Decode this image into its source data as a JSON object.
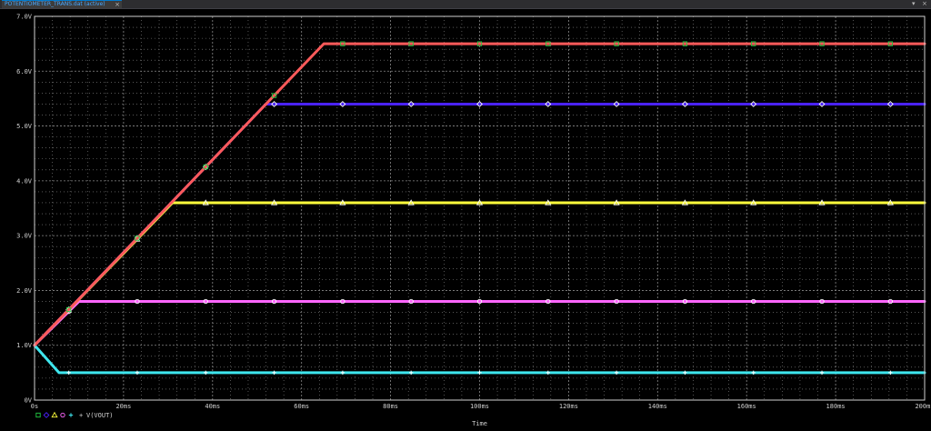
{
  "window": {
    "tab_label": "POTENTIOMETER_TRANS.dat (active)",
    "close_glyph": "×",
    "scroll_glyph": "▾",
    "window_close_glyph": "×"
  },
  "legend": {
    "label": "V(VOUT)",
    "prefix": "+"
  },
  "colors": {
    "background": "#000000",
    "grid": "#8a8a8a",
    "axis": "#cfcfcf",
    "series": [
      "#ff5a5a",
      "#4a22ff",
      "#ffff3c",
      "#ff66ff",
      "#3ee6ee"
    ],
    "marker_first": "#22cc44"
  },
  "chart_data": {
    "type": "line",
    "title": "",
    "xlabel": "Time",
    "ylabel": "",
    "xlim": [
      0,
      200
    ],
    "ylim": [
      0,
      7
    ],
    "x_ticks": [
      0,
      20,
      40,
      60,
      80,
      100,
      120,
      140,
      160,
      180,
      200
    ],
    "x_tick_labels": [
      "0s",
      "20ms",
      "40ms",
      "60ms",
      "80ms",
      "100ms",
      "120ms",
      "140ms",
      "160ms",
      "180ms",
      "200ms"
    ],
    "y_ticks": [
      0,
      1,
      2,
      3,
      4,
      5,
      6,
      7
    ],
    "y_tick_labels": [
      "0V",
      "1.0V",
      "2.0V",
      "3.0V",
      "4.0V",
      "5.0V",
      "6.0V",
      "7.0V"
    ],
    "grid": true,
    "legend_position": "bottom-left",
    "series": [
      {
        "marker": "square",
        "x": [
          0,
          65,
          200
        ],
        "y": [
          1.0,
          6.5,
          6.5
        ]
      },
      {
        "marker": "diamond",
        "x": [
          0,
          52,
          200
        ],
        "y": [
          1.0,
          5.4,
          5.4
        ]
      },
      {
        "marker": "triangle",
        "x": [
          0,
          31,
          200
        ],
        "y": [
          1.0,
          3.6,
          3.6
        ]
      },
      {
        "marker": "circle",
        "x": [
          0,
          10,
          200
        ],
        "y": [
          1.0,
          1.8,
          1.8
        ]
      },
      {
        "marker": "plus",
        "x": [
          0,
          5.5,
          200
        ],
        "y": [
          1.0,
          0.5,
          0.5
        ]
      }
    ]
  }
}
